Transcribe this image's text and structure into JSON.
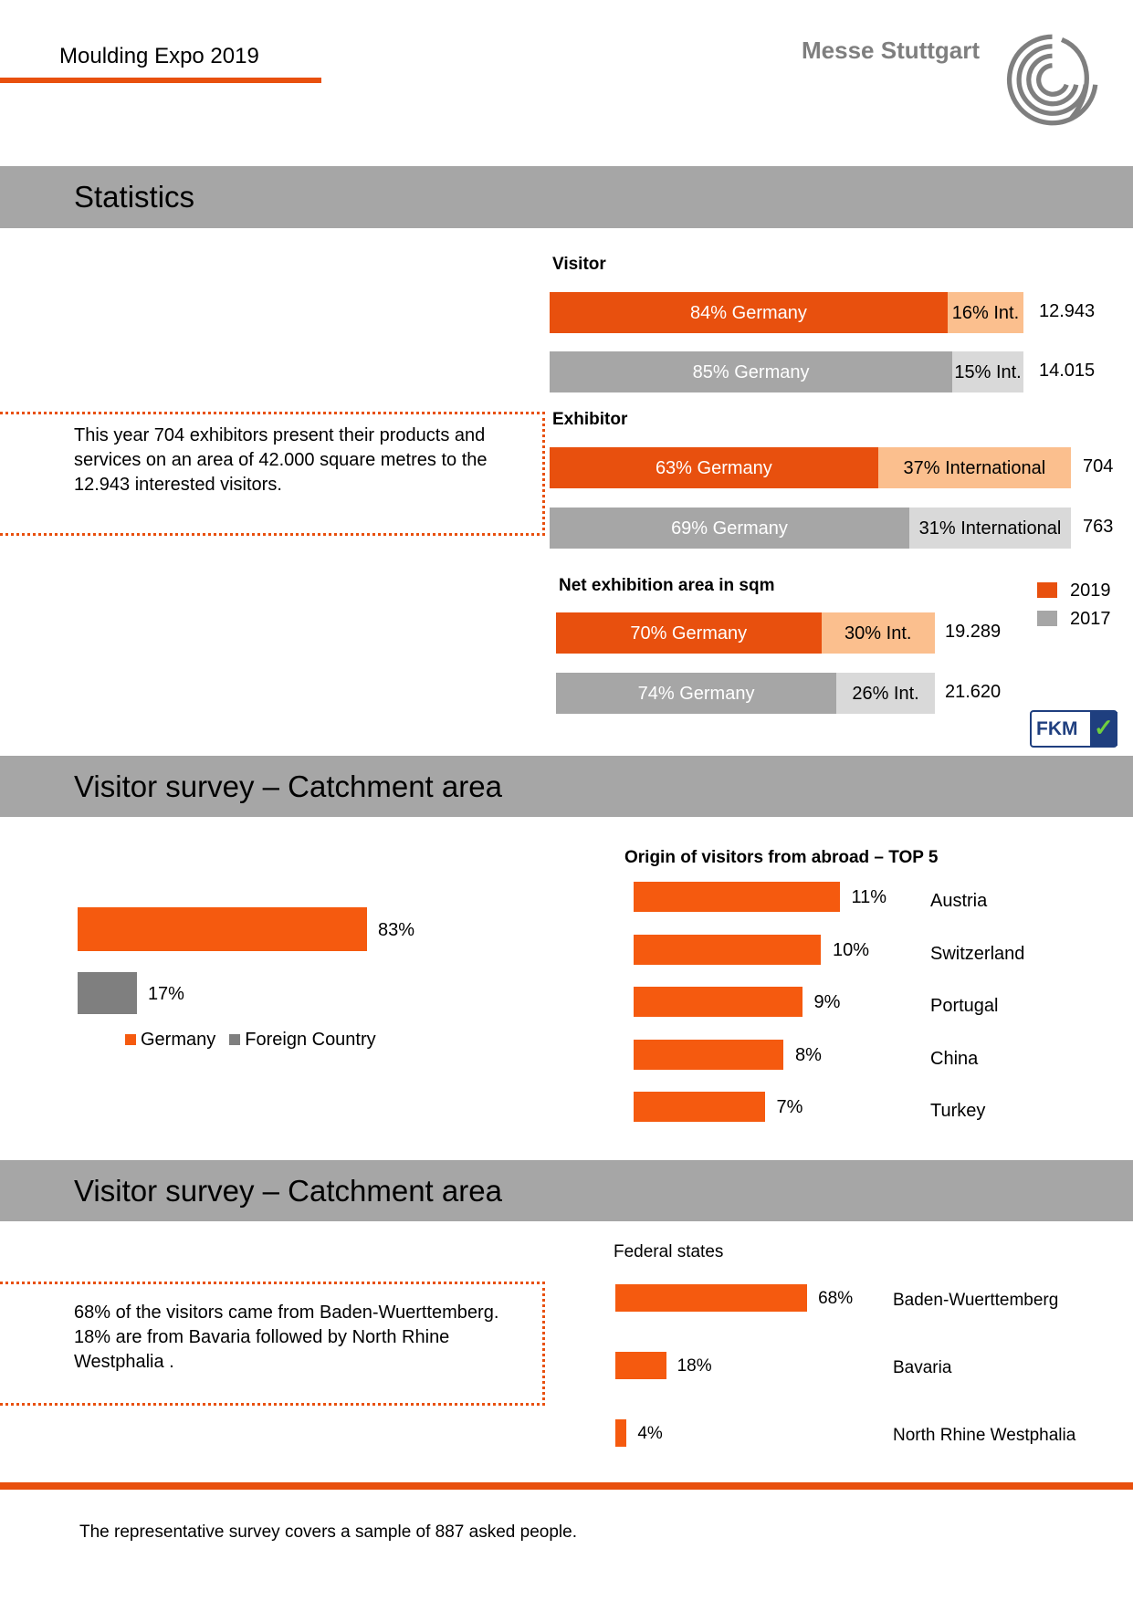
{
  "header": {
    "title": "Moulding Expo 2019",
    "brand": "Messe Stuttgart"
  },
  "statistics": {
    "title": "Statistics",
    "note": "This year 704 exhibitors present their products and services on an area of  42.000 square metres to the 12.943 interested visitors.",
    "legend": [
      {
        "name": "2019",
        "color": "#e8500e",
        "light_color": "#fbbf8e"
      },
      {
        "name": "2017",
        "color": "#a6a6a6",
        "light_color": "#d9d9d9"
      }
    ],
    "groups": [
      {
        "label": "Visitor",
        "rows": [
          {
            "germany": 84,
            "germany_label": "84% Germany",
            "international": 16,
            "international_label": "16% Int.",
            "total": "12.943"
          },
          {
            "germany": 85,
            "germany_label": "85% Germany",
            "international": 15,
            "international_label": "15% Int.",
            "total": "14.015"
          }
        ]
      },
      {
        "label": "Exhibitor",
        "rows": [
          {
            "germany": 63,
            "germany_label": "63% Germany",
            "international": 37,
            "international_label": "37% International",
            "total": "704"
          },
          {
            "germany": 69,
            "germany_label": "69% Germany",
            "international": 31,
            "international_label": "31% International",
            "total": "763"
          }
        ]
      },
      {
        "label": "Net exhibition area in sqm",
        "rows": [
          {
            "germany": 70,
            "germany_label": "70% Germany",
            "international": 30,
            "international_label": "30% Int.",
            "total": "19.289"
          },
          {
            "germany": 74,
            "germany_label": "74% Germany",
            "international": 26,
            "international_label": "26% Int.",
            "total": "21.620"
          }
        ]
      }
    ],
    "badge": "FKM"
  },
  "catchment": {
    "title": "Visitor survey – Catchment area",
    "share_chart": {
      "type": "bar",
      "categories": [
        "Germany",
        "Foreign Country"
      ],
      "values": [
        83,
        17
      ],
      "value_labels": [
        "83%",
        "17%"
      ],
      "colors": [
        "#f55a0f",
        "#7f7f7f"
      ]
    },
    "abroad_chart": {
      "type": "bar",
      "title": "Origin of visitors from abroad – TOP 5",
      "categories": [
        "Austria",
        "Switzerland",
        "Portugal",
        "China",
        "Turkey"
      ],
      "values": [
        11,
        10,
        9,
        8,
        7
      ],
      "value_labels": [
        "11%",
        "10%",
        "9%",
        "8%",
        "7%"
      ],
      "color": "#f55a0f"
    }
  },
  "federal": {
    "title": "Visitor survey – Catchment area",
    "note": "68% of the visitors came from Baden-Wuerttemberg. 18% are from Bavaria followed by North Rhine Westphalia .",
    "chart": {
      "type": "bar",
      "title": "Federal states",
      "categories": [
        "Baden-Wuerttemberg",
        "Bavaria",
        "North Rhine Westphalia"
      ],
      "values": [
        68,
        18,
        4
      ],
      "value_labels": [
        "68%",
        "18%",
        "4%"
      ],
      "color": "#f55a0f"
    }
  },
  "footer": {
    "note": "The representative survey covers a sample of 887 asked people."
  }
}
